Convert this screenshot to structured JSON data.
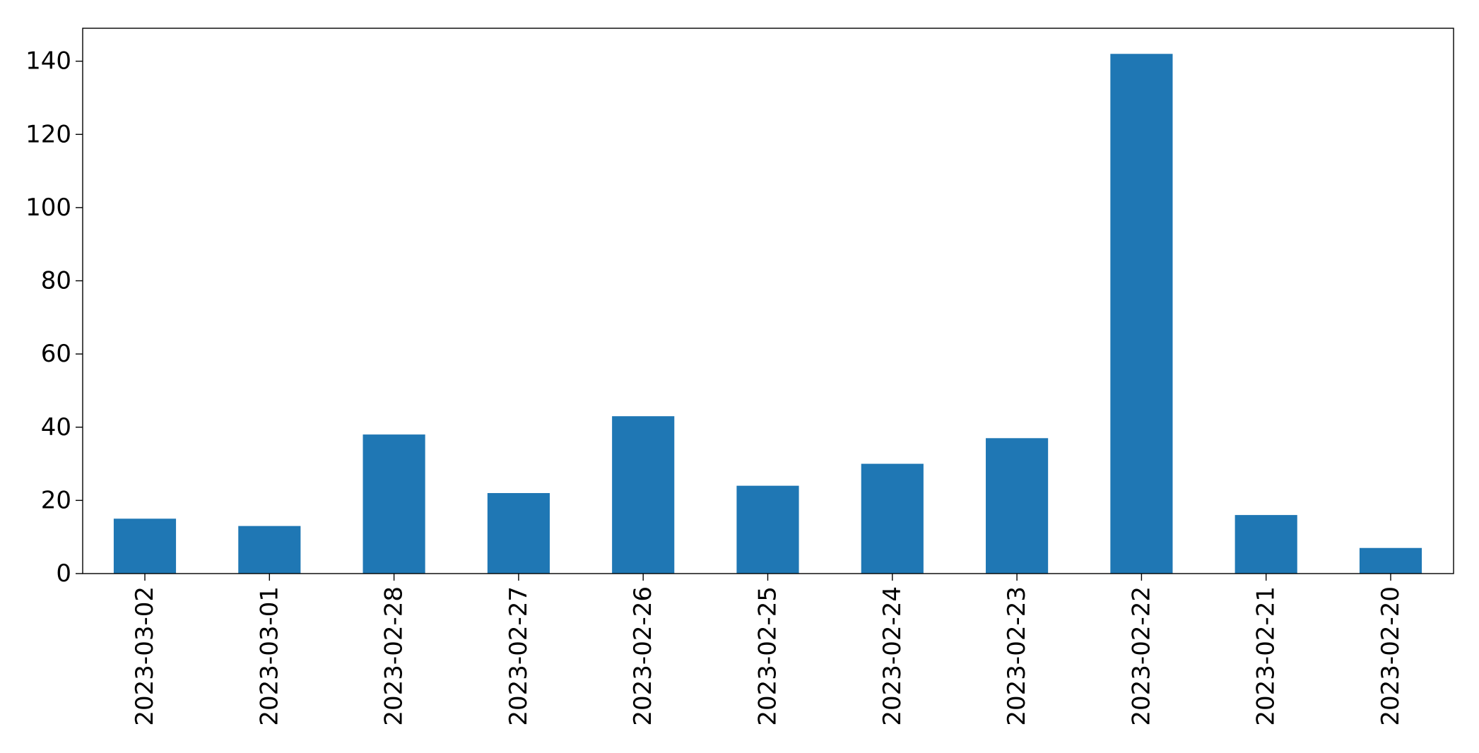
{
  "chart_data": {
    "type": "bar",
    "title": "",
    "xlabel": "",
    "ylabel": "",
    "categories": [
      "2023-03-02",
      "2023-03-01",
      "2023-02-28",
      "2023-02-27",
      "2023-02-26",
      "2023-02-25",
      "2023-02-24",
      "2023-02-23",
      "2023-02-22",
      "2023-02-21",
      "2023-02-20"
    ],
    "values": [
      15,
      13,
      38,
      22,
      43,
      24,
      30,
      37,
      142,
      16,
      7
    ],
    "ylim": [
      0,
      149
    ],
    "yticks": [
      "0",
      "20",
      "40",
      "60",
      "80",
      "100",
      "120",
      "140"
    ],
    "grid": false,
    "legend": "none",
    "bar_color": "#1f77b4"
  }
}
